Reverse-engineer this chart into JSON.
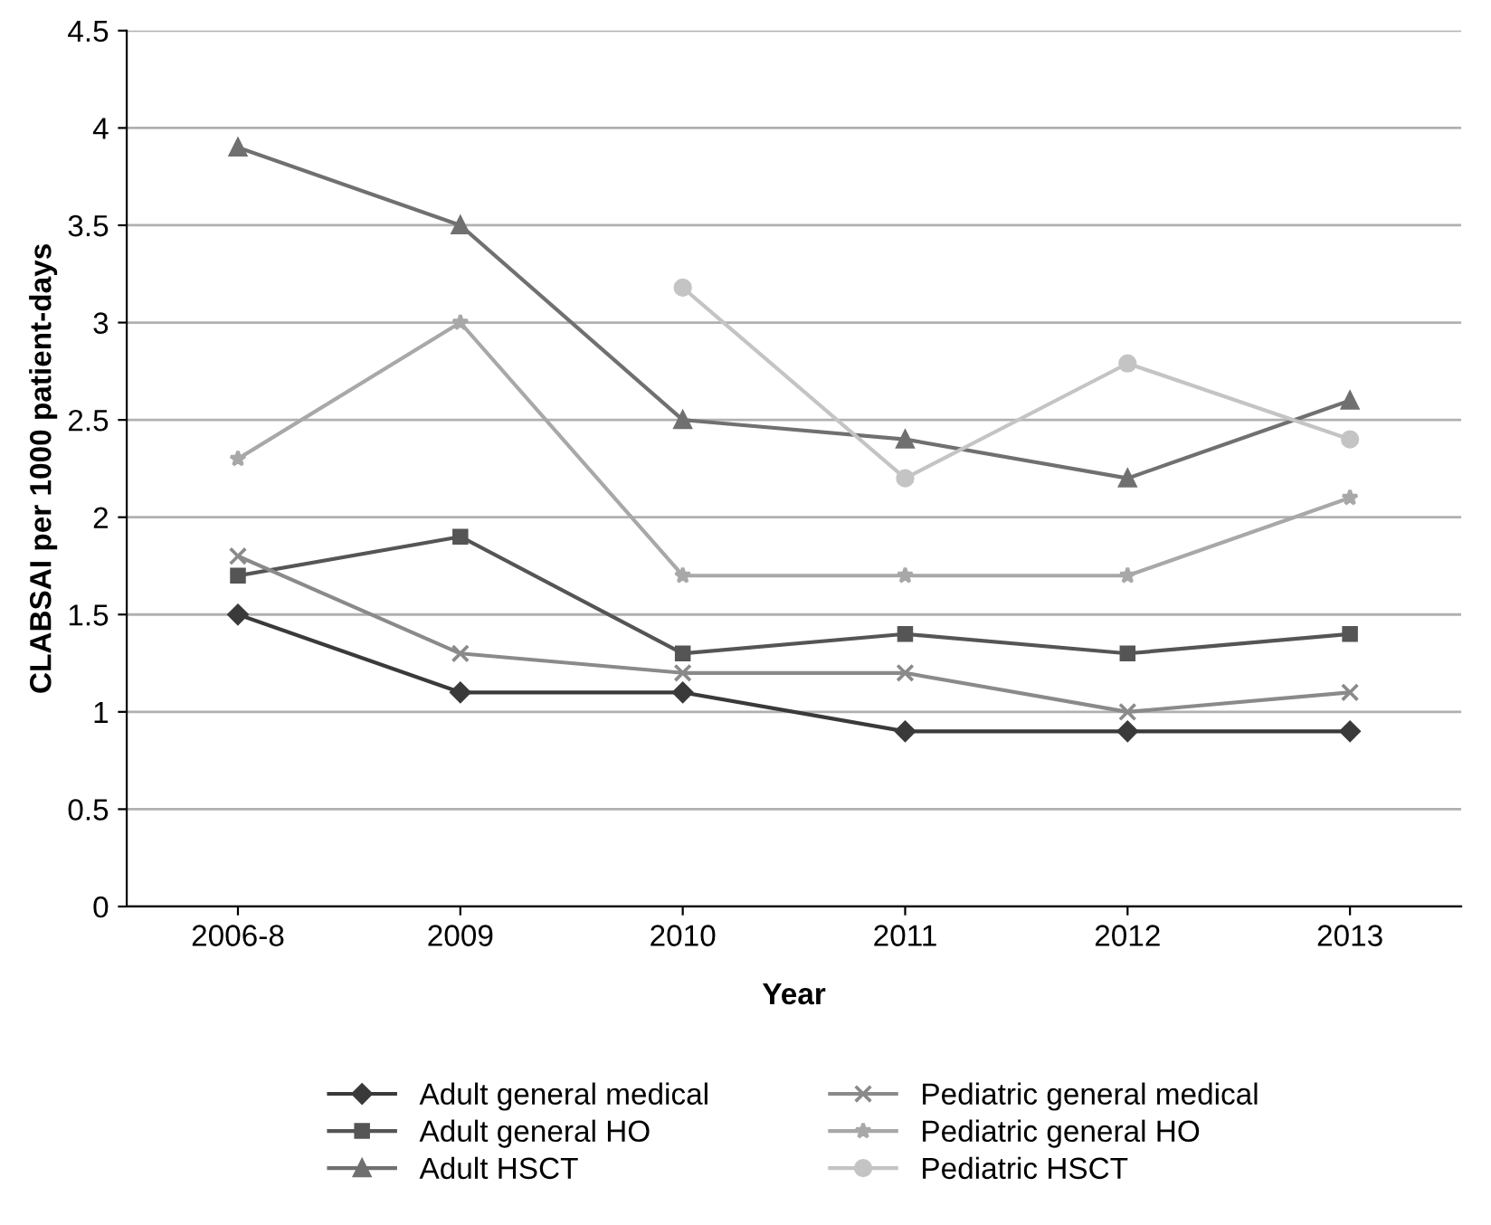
{
  "chart_data": {
    "type": "line",
    "xlabel": "Year",
    "ylabel": "CLABSAI per 1000 patient-days",
    "categories": [
      "2006-8",
      "2009",
      "2010",
      "2011",
      "2012",
      "2013"
    ],
    "series": [
      {
        "name": "Adult general medical",
        "color": "#3a3a3a",
        "marker": "diamond",
        "values": [
          1.5,
          1.1,
          1.1,
          0.9,
          0.9,
          0.9
        ]
      },
      {
        "name": "Adult general HO",
        "color": "#555555",
        "marker": "square",
        "values": [
          1.7,
          1.9,
          1.3,
          1.4,
          1.3,
          1.4
        ]
      },
      {
        "name": "Adult HSCT",
        "color": "#707070",
        "marker": "triangle",
        "values": [
          3.9,
          3.5,
          2.5,
          2.4,
          2.2,
          2.6
        ]
      },
      {
        "name": "Pediatric general medical",
        "color": "#8a8a8a",
        "marker": "cross",
        "values": [
          1.8,
          1.3,
          1.2,
          1.2,
          1.0,
          1.1
        ]
      },
      {
        "name": "Pediatric general HO",
        "color": "#a8a8a8",
        "marker": "star",
        "values": [
          2.3,
          3.0,
          1.7,
          1.7,
          1.7,
          2.1
        ]
      },
      {
        "name": "Pediatric HSCT",
        "color": "#c4c4c4",
        "marker": "circle",
        "values": [
          null,
          null,
          3.18,
          2.2,
          2.79,
          2.4
        ]
      }
    ],
    "ylim": [
      0,
      4.5
    ],
    "yticks": [
      0,
      0.5,
      1,
      1.5,
      2,
      2.5,
      3,
      3.5,
      4,
      4.5
    ],
    "grid": "y",
    "legend": "bottom",
    "line_style": "solid"
  }
}
